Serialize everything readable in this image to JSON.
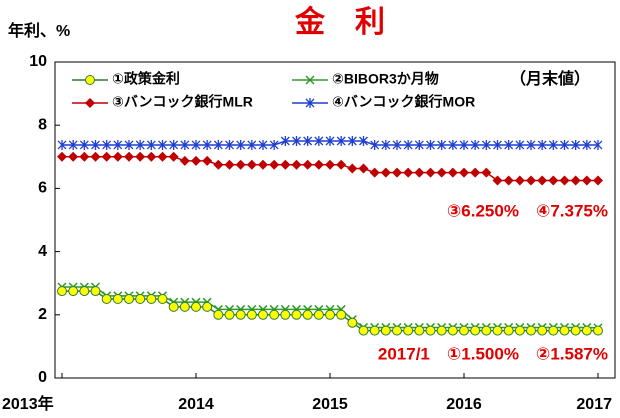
{
  "chart_data": {
    "type": "line",
    "title": "金　利",
    "y_label": "年利、%",
    "note": "（月末値）",
    "annotations": [
      "③6.250%　④7.375%",
      "2017/1　①1.500%　②1.587%"
    ],
    "categories": [
      "2013年",
      null,
      null,
      null,
      null,
      null,
      null,
      null,
      null,
      null,
      null,
      null,
      "2014",
      null,
      null,
      null,
      null,
      null,
      null,
      null,
      null,
      null,
      null,
      null,
      "2015",
      null,
      null,
      null,
      null,
      null,
      null,
      null,
      null,
      null,
      null,
      null,
      "2016",
      null,
      null,
      null,
      null,
      null,
      null,
      null,
      null,
      null,
      null,
      null,
      "2017"
    ],
    "ylim": [
      0,
      10
    ],
    "yticks": [
      0,
      2,
      4,
      6,
      8,
      10
    ],
    "grid": false,
    "legend": "top-left",
    "series": [
      {
        "name": "①政策金利",
        "color": "#2e7d32",
        "marker": "circle",
        "marker_color": "#ffff00",
        "values": [
          2.75,
          2.75,
          2.75,
          2.75,
          2.5,
          2.5,
          2.5,
          2.5,
          2.5,
          2.5,
          2.25,
          2.25,
          2.25,
          2.25,
          2,
          2,
          2,
          2,
          2,
          2,
          2,
          2,
          2,
          2,
          2,
          2,
          1.75,
          1.5,
          1.5,
          1.5,
          1.5,
          1.5,
          1.5,
          1.5,
          1.5,
          1.5,
          1.5,
          1.5,
          1.5,
          1.5,
          1.5,
          1.5,
          1.5,
          1.5,
          1.5,
          1.5,
          1.5,
          1.5,
          1.5
        ]
      },
      {
        "name": "②BIBOR3か月物",
        "color": "#2e9a2e",
        "marker": "x",
        "marker_color": "#2e9a2e",
        "values": [
          2.88,
          2.88,
          2.88,
          2.88,
          2.6,
          2.6,
          2.6,
          2.6,
          2.6,
          2.6,
          2.4,
          2.4,
          2.4,
          2.4,
          2.17,
          2.17,
          2.17,
          2.17,
          2.17,
          2.17,
          2.17,
          2.17,
          2.17,
          2.17,
          2.17,
          2.17,
          1.85,
          1.6,
          1.6,
          1.6,
          1.6,
          1.6,
          1.6,
          1.6,
          1.6,
          1.6,
          1.6,
          1.6,
          1.6,
          1.6,
          1.6,
          1.6,
          1.6,
          1.6,
          1.6,
          1.6,
          1.6,
          1.6,
          1.587
        ]
      },
      {
        "name": "③バンコック銀行MLR",
        "color": "#c00000",
        "marker": "diamond",
        "marker_color": "#c00000",
        "values": [
          7,
          7,
          7,
          7,
          7,
          7,
          7,
          7,
          7,
          7,
          7,
          6.87,
          6.87,
          6.87,
          6.75,
          6.75,
          6.75,
          6.75,
          6.75,
          6.75,
          6.75,
          6.75,
          6.75,
          6.75,
          6.75,
          6.75,
          6.63,
          6.63,
          6.5,
          6.5,
          6.5,
          6.5,
          6.5,
          6.5,
          6.5,
          6.5,
          6.5,
          6.5,
          6.5,
          6.25,
          6.25,
          6.25,
          6.25,
          6.25,
          6.25,
          6.25,
          6.25,
          6.25,
          6.25
        ]
      },
      {
        "name": "④バンコック銀行MOR",
        "color": "#1f3fd0",
        "marker": "star",
        "marker_color": "#1f3fd0",
        "values": [
          7.375,
          7.375,
          7.375,
          7.375,
          7.375,
          7.375,
          7.375,
          7.375,
          7.375,
          7.375,
          7.375,
          7.375,
          7.375,
          7.375,
          7.375,
          7.375,
          7.375,
          7.375,
          7.375,
          7.375,
          7.5,
          7.5,
          7.5,
          7.5,
          7.5,
          7.5,
          7.5,
          7.5,
          7.375,
          7.375,
          7.375,
          7.375,
          7.375,
          7.375,
          7.375,
          7.375,
          7.375,
          7.375,
          7.375,
          7.375,
          7.375,
          7.375,
          7.375,
          7.375,
          7.375,
          7.375,
          7.375,
          7.375,
          7.375
        ]
      }
    ]
  }
}
